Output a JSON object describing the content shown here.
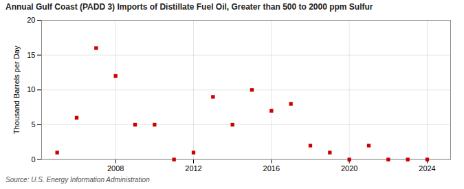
{
  "chart_data": {
    "type": "scatter",
    "title": "Annual Gulf Coast (PADD 3) Imports of Distillate Fuel Oil, Greater than 500 to 2000 ppm Sulfur",
    "ylabel": "Thousand Barrels per Day",
    "source": "Source: U.S. Energy Information Administration",
    "x": [
      2005,
      2006,
      2007,
      2008,
      2009,
      2010,
      2011,
      2012,
      2013,
      2014,
      2015,
      2016,
      2017,
      2018,
      2019,
      2020,
      2021,
      2022,
      2023,
      2024
    ],
    "values": [
      1.0,
      6.0,
      16.0,
      12.0,
      5.0,
      5.0,
      0.0,
      1.0,
      9.0,
      5.0,
      10.0,
      7.0,
      8.0,
      2.0,
      1.0,
      0.0,
      2.0,
      0.0,
      0.0,
      0.0
    ],
    "color": "#cc0000",
    "marker": "square",
    "xlim": [
      2004.2,
      2025.2
    ],
    "xticks": [
      2008,
      2012,
      2016,
      2020,
      2024
    ],
    "ylim": [
      0,
      20
    ],
    "yticks": [
      0,
      5,
      10,
      15,
      20
    ],
    "grid": true
  }
}
